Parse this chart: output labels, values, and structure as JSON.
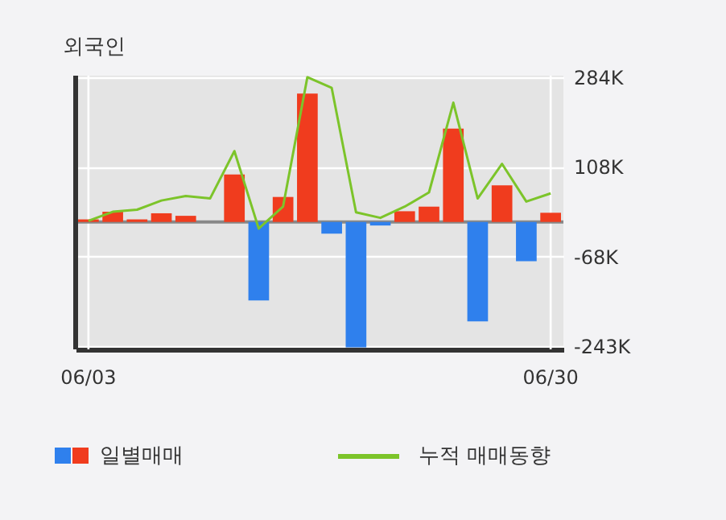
{
  "chart_data": {
    "type": "bar",
    "title": "외국인",
    "categories": [
      "06/03",
      null,
      null,
      null,
      null,
      null,
      null,
      null,
      null,
      null,
      null,
      null,
      null,
      null,
      null,
      null,
      null,
      null,
      null,
      "06/30"
    ],
    "series": [
      {
        "name": "일별매매",
        "colors": [
          "#f03c1e",
          "#f03c1e",
          "#f03c1e",
          "#f03c1e",
          "#f03c1e",
          "#f03c1e",
          "#f03c1e",
          "#2f80ed",
          "#f03c1e",
          "#f03c1e",
          "#2f80ed",
          "#2f80ed",
          "#2f80ed",
          "#f03c1e",
          "#f03c1e",
          "#f03c1e",
          "#2f80ed",
          "#f03c1e",
          "#2f80ed",
          "#f03c1e"
        ],
        "values": [
          5,
          20,
          5,
          17,
          12,
          0,
          93,
          -154,
          49,
          252,
          -23,
          -246,
          -7,
          21,
          30,
          183,
          -195,
          72,
          -77,
          18
        ]
      },
      {
        "name": "누적 매매동향",
        "type": "line",
        "color": "#7cc42a",
        "values": [
          2,
          20,
          24,
          42,
          51,
          46,
          139,
          -13,
          30,
          284,
          263,
          19,
          8,
          30,
          58,
          234,
          46,
          114,
          40,
          56
        ]
      }
    ],
    "ylim": [
      -250,
      287
    ],
    "yticks": [
      {
        "value": 284,
        "label": "284K"
      },
      {
        "value": 108,
        "label": "108K"
      },
      {
        "value": -68,
        "label": "-68K"
      },
      {
        "value": -243,
        "label": "-243K"
      }
    ],
    "grid": true,
    "legend": "bottom"
  }
}
